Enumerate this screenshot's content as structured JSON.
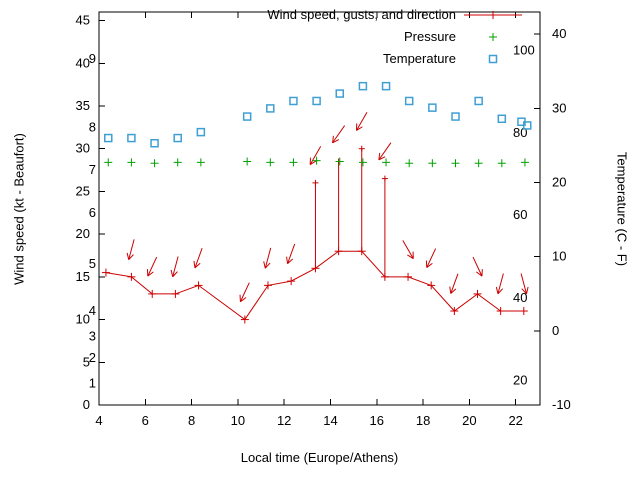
{
  "chart_data": {
    "type": "line",
    "title": "",
    "xlabel": "Local time (Europe/Athens)",
    "ylabel_left": "Wind speed (kt - Beaufort)",
    "ylabel_right": "Temperature (C - F)",
    "xlim": [
      4,
      23.05
    ],
    "x_ticks": [
      4,
      6,
      8,
      10,
      12,
      14,
      16,
      18,
      20,
      22
    ],
    "ylim_left": [
      0,
      46
    ],
    "y_ticks_left": [
      0,
      5,
      10,
      15,
      20,
      25,
      30,
      35,
      40,
      45
    ],
    "ylim_right": [
      -10,
      43
    ],
    "y_ticks_right": [
      -10,
      0,
      10,
      20,
      30,
      40
    ],
    "grid": false,
    "legend_position": "top-right-inside",
    "beaufort_labels": [
      {
        "label": "1",
        "kt": 2.5
      },
      {
        "label": "2",
        "kt": 5.5
      },
      {
        "label": "3",
        "kt": 8
      },
      {
        "label": "4",
        "kt": 11
      },
      {
        "label": "5",
        "kt": 16.5
      },
      {
        "label": "6",
        "kt": 22.5
      },
      {
        "label": "7",
        "kt": 27.5
      },
      {
        "label": "8",
        "kt": 32.5
      },
      {
        "label": "9",
        "kt": 40.5
      }
    ],
    "fahrenheit_labels": [
      {
        "label": "20",
        "c": -6.7
      },
      {
        "label": "40",
        "c": 4.4
      },
      {
        "label": "60",
        "c": 15.6
      },
      {
        "label": "80",
        "c": 26.7
      },
      {
        "label": "100",
        "c": 37.8
      }
    ],
    "legend": [
      {
        "label": "Wind speed, gusts, and direction",
        "color": "#cc0000",
        "style": "line-plus"
      },
      {
        "label": "Pressure",
        "color": "#00a000",
        "style": "plus"
      },
      {
        "label": "Temperature",
        "color": "#3f9fd4",
        "style": "square"
      }
    ],
    "series": {
      "wind": {
        "name": "Wind speed, gusts, and direction",
        "color": "#cc0000",
        "units": "kt",
        "points": [
          {
            "t": 4.3,
            "speed": 15.5,
            "gust": null,
            "dir": null
          },
          {
            "t": 5.4,
            "speed": 15,
            "gust": null,
            "dir": 195
          },
          {
            "t": 6.3,
            "speed": 13,
            "gust": null,
            "dir": 205
          },
          {
            "t": 7.3,
            "speed": 13,
            "gust": null,
            "dir": 195
          },
          {
            "t": 8.3,
            "speed": 14,
            "gust": null,
            "dir": 200
          },
          {
            "t": 10.3,
            "speed": 10,
            "gust": null,
            "dir": 205
          },
          {
            "t": 11.3,
            "speed": 14,
            "gust": null,
            "dir": 195
          },
          {
            "t": 12.3,
            "speed": 14.5,
            "gust": null,
            "dir": 200
          },
          {
            "t": 13.35,
            "speed": 16,
            "gust": 26,
            "dir": 210
          },
          {
            "t": 14.35,
            "speed": 18,
            "gust": 28.5,
            "dir": 215
          },
          {
            "t": 15.35,
            "speed": 18,
            "gust": 30,
            "dir": 210
          },
          {
            "t": 16.35,
            "speed": 15,
            "gust": 26.5,
            "dir": 215
          },
          {
            "t": 17.35,
            "speed": 15,
            "gust": null,
            "dir": 150
          },
          {
            "t": 18.35,
            "speed": 14,
            "gust": null,
            "dir": 205
          },
          {
            "t": 19.35,
            "speed": 11,
            "gust": null,
            "dir": 200
          },
          {
            "t": 20.35,
            "speed": 13,
            "gust": null,
            "dir": 155
          },
          {
            "t": 21.35,
            "speed": 11,
            "gust": null,
            "dir": 195
          },
          {
            "t": 22.35,
            "speed": 11,
            "gust": null,
            "dir": 165
          }
        ]
      },
      "pressure": {
        "name": "Pressure",
        "color": "#00a000",
        "x": [
          4.4,
          5.4,
          6.4,
          7.4,
          8.4,
          10.4,
          11.4,
          12.4,
          13.4,
          14.4,
          15.4,
          16.4,
          17.4,
          18.4,
          19.4,
          20.4,
          21.4,
          22.4
        ],
        "v": [
          28.4,
          28.4,
          28.3,
          28.4,
          28.4,
          28.5,
          28.4,
          28.4,
          28.6,
          28.5,
          28.4,
          28.4,
          28.3,
          28.3,
          28.3,
          28.3,
          28.3,
          28.4
        ]
      },
      "temperature": {
        "name": "Temperature",
        "color": "#3f9fd4",
        "units": "C",
        "points": [
          {
            "t": 4.4,
            "c": 26
          },
          {
            "t": 5.4,
            "c": 26
          },
          {
            "t": 6.4,
            "c": 25.3
          },
          {
            "t": 7.4,
            "c": 26
          },
          {
            "t": 8.4,
            "c": 26.8
          },
          {
            "t": 10.4,
            "c": 28.9
          },
          {
            "t": 11.4,
            "c": 30
          },
          {
            "t": 12.4,
            "c": 31
          },
          {
            "t": 13.4,
            "c": 31
          },
          {
            "t": 14.4,
            "c": 32
          },
          {
            "t": 15.4,
            "c": 33
          },
          {
            "t": 16.4,
            "c": 33
          },
          {
            "t": 17.4,
            "c": 31
          },
          {
            "t": 18.4,
            "c": 30.1
          },
          {
            "t": 19.4,
            "c": 28.9
          },
          {
            "t": 20.4,
            "c": 31
          },
          {
            "t": 21.4,
            "c": 28.6
          },
          {
            "t": 22.25,
            "c": 28.2
          },
          {
            "t": 22.5,
            "c": 27.7
          }
        ]
      }
    }
  }
}
